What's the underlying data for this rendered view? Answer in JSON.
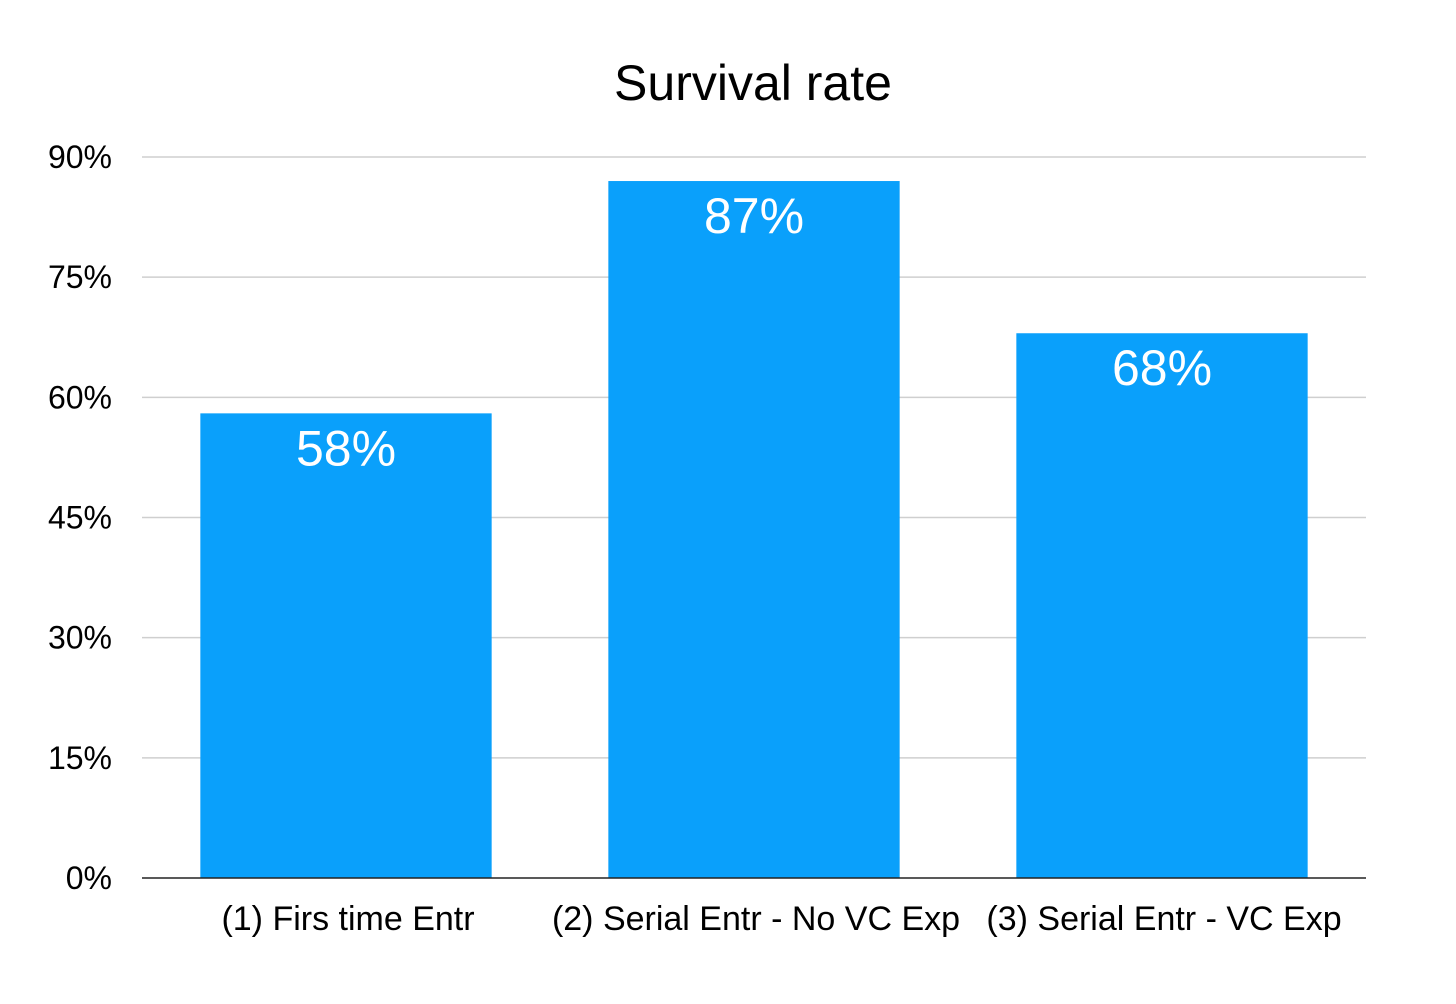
{
  "chart_data": {
    "type": "bar",
    "title": "Survival rate",
    "categories": [
      "(1) Firs time Entr",
      "(2) Serial Entr - No VC Exp",
      "(3) Serial Entr - VC Exp"
    ],
    "values": [
      58,
      87,
      68
    ],
    "data_labels": [
      "58%",
      "87%",
      "68%"
    ],
    "ylim": [
      0,
      90
    ],
    "yticks": [
      0,
      15,
      30,
      45,
      60,
      75,
      90
    ],
    "ytick_labels": [
      "0%",
      "15%",
      "30%",
      "45%",
      "60%",
      "75%",
      "90%"
    ],
    "grid": true,
    "legend": "none",
    "bar_color": "#0aa0fb"
  }
}
